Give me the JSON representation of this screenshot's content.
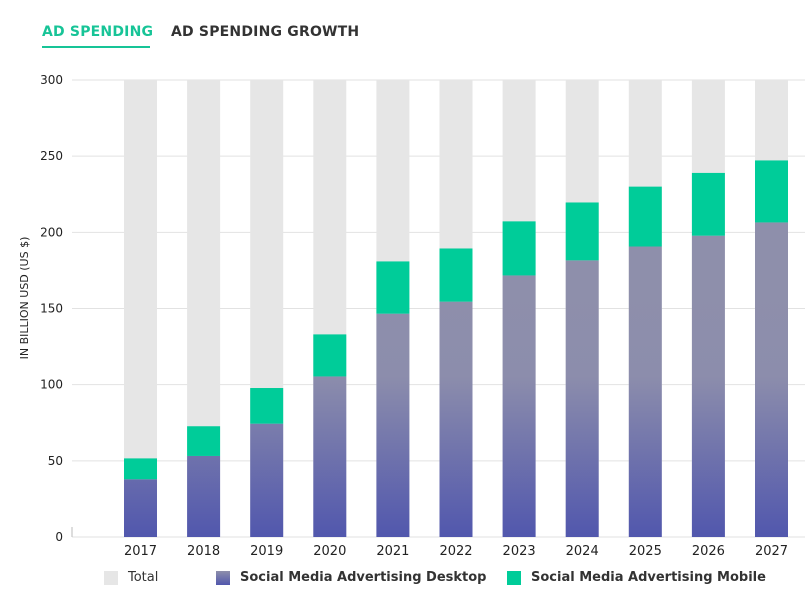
{
  "tabs": [
    {
      "label": "AD SPENDING",
      "active": true
    },
    {
      "label": "AD SPENDING GROWTH",
      "active": false
    }
  ],
  "chart_data": {
    "type": "bar",
    "stacked": true,
    "categories": [
      "2017",
      "2018",
      "2019",
      "2020",
      "2021",
      "2022",
      "2023",
      "2024",
      "2025",
      "2026",
      "2027"
    ],
    "series": [
      {
        "name": "Social Media Advertising Desktop",
        "color": "#5a5fae",
        "values": [
          37.9,
          53.2,
          74.4,
          105.4,
          146.6,
          154.5,
          171.7,
          181.6,
          190.7,
          197.8,
          206.5
        ]
      },
      {
        "name": "Social Media Advertising Mobile",
        "color": "#00cc99",
        "values": [
          13.7,
          19.5,
          23.4,
          27.6,
          34.3,
          34.9,
          35.5,
          38.0,
          39.3,
          41.2,
          40.7
        ]
      }
    ],
    "total_legend": {
      "name": "Total",
      "color": "#e6e6e6"
    },
    "ylabel": "IN BILLION USD (US $)",
    "xlabel": "",
    "ylim": [
      0,
      300
    ],
    "yticks": [
      0,
      50,
      100,
      150,
      200,
      250,
      300
    ],
    "grid": true,
    "legend_position": "bottom"
  }
}
